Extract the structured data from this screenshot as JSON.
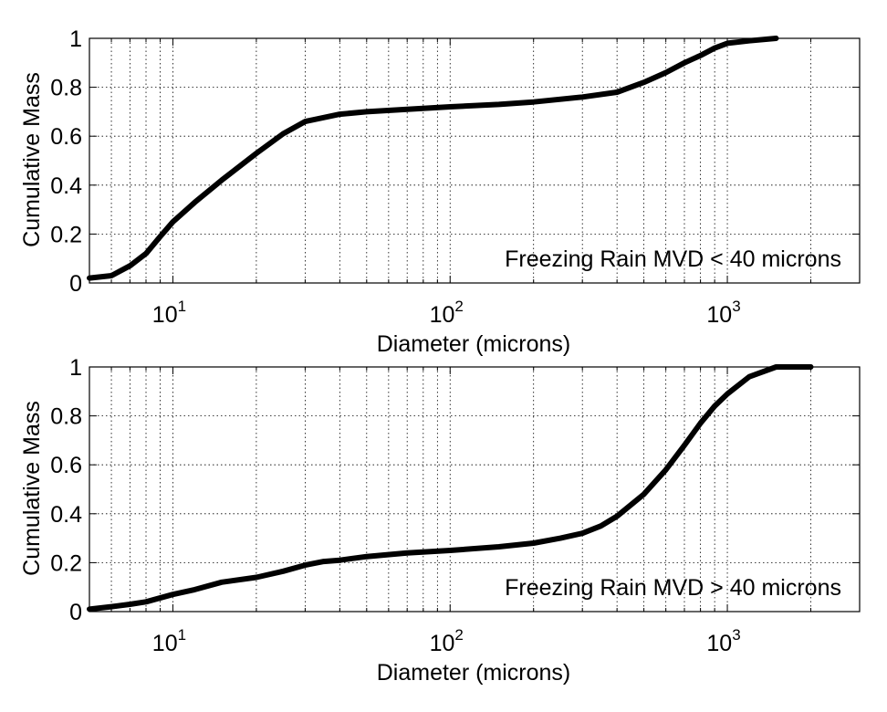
{
  "chart_data": [
    {
      "type": "line",
      "xscale": "log",
      "xlim": [
        5,
        3000
      ],
      "ylim": [
        0,
        1
      ],
      "grid": true,
      "xlabel": "Diameter (microns)",
      "ylabel": "Cumulative Mass",
      "annotation": "Freezing Rain MVD < 40 microns",
      "yticks": [
        "0",
        "0.2",
        "0.4",
        "0.6",
        "0.8",
        "1"
      ],
      "xticks": [
        {
          "base": "10",
          "exp": "1"
        },
        {
          "base": "10",
          "exp": "2"
        },
        {
          "base": "10",
          "exp": "3"
        }
      ],
      "series": [
        {
          "color": "#000000",
          "x": [
            5,
            6,
            7,
            8,
            9,
            10,
            12,
            15,
            20,
            25,
            30,
            40,
            50,
            70,
            100,
            150,
            200,
            300,
            400,
            500,
            600,
            700,
            800,
            900,
            1000,
            1200,
            1500
          ],
          "y": [
            0.02,
            0.03,
            0.07,
            0.12,
            0.19,
            0.25,
            0.33,
            0.42,
            0.53,
            0.61,
            0.66,
            0.69,
            0.7,
            0.71,
            0.72,
            0.73,
            0.74,
            0.76,
            0.78,
            0.82,
            0.86,
            0.9,
            0.93,
            0.96,
            0.98,
            0.99,
            1.0
          ]
        }
      ]
    },
    {
      "type": "line",
      "xscale": "log",
      "xlim": [
        5,
        3000
      ],
      "ylim": [
        0,
        1
      ],
      "grid": true,
      "xlabel": "Diameter (microns)",
      "ylabel": "Cumulative Mass",
      "annotation": "Freezing Rain MVD > 40 microns",
      "yticks": [
        "0",
        "0.2",
        "0.4",
        "0.6",
        "0.8",
        "1"
      ],
      "xticks": [
        {
          "base": "10",
          "exp": "1"
        },
        {
          "base": "10",
          "exp": "2"
        },
        {
          "base": "10",
          "exp": "3"
        }
      ],
      "series": [
        {
          "color": "#000000",
          "x": [
            5,
            6,
            7,
            8,
            10,
            12,
            15,
            20,
            25,
            30,
            35,
            40,
            50,
            70,
            100,
            150,
            200,
            250,
            300,
            350,
            400,
            500,
            600,
            700,
            800,
            900,
            1000,
            1200,
            1500,
            2000
          ],
          "y": [
            0.01,
            0.02,
            0.03,
            0.04,
            0.07,
            0.09,
            0.12,
            0.14,
            0.165,
            0.19,
            0.205,
            0.21,
            0.225,
            0.24,
            0.25,
            0.265,
            0.28,
            0.3,
            0.32,
            0.35,
            0.39,
            0.48,
            0.58,
            0.68,
            0.77,
            0.84,
            0.89,
            0.96,
            1.0,
            1.0
          ]
        }
      ]
    }
  ]
}
